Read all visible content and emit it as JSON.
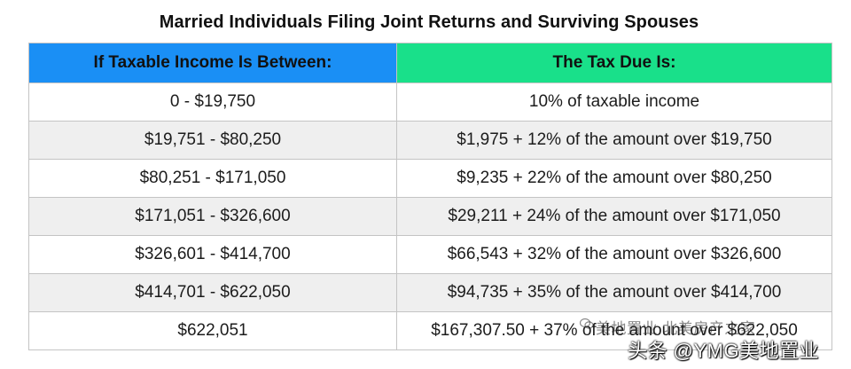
{
  "title": "Married Individuals Filing Joint Returns and Surviving Spouses",
  "table": {
    "headers": [
      "If Taxable Income Is Between:",
      "The Tax Due Is:"
    ],
    "header_colors": [
      "#1a8ff5",
      "#19e08a"
    ],
    "rows": [
      [
        "0 - $19,750",
        "10% of taxable income"
      ],
      [
        "$19,751 - $80,250",
        "$1,975 + 12% of the amount over $19,750"
      ],
      [
        "$80,251 - $171,050",
        "$9,235 + 22% of the amount over $80,250"
      ],
      [
        "$171,051 - $326,600",
        "$29,211 + 24% of the amount over $171,050"
      ],
      [
        "$326,601 - $414,700",
        "$66,543 + 32% of the amount over $326,600"
      ],
      [
        "$414,701 - $622,050",
        "$94,735 + 35% of the amount over $414,700"
      ],
      [
        "$622,051",
        "$167,307.50 + 37% of the amount over $622,050"
      ]
    ]
  },
  "watermark": {
    "line1": "美地置业 北美房产之家",
    "line2": "头条 @YMG美地置业"
  }
}
